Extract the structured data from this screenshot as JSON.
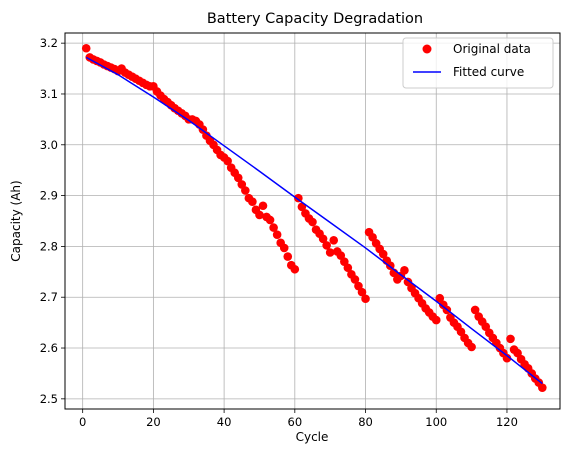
{
  "chart_data": {
    "type": "scatter",
    "title": "Battery Capacity Degradation",
    "xlabel": "Cycle",
    "ylabel": "Capacity (Ah)",
    "xlim": [
      -5,
      135
    ],
    "ylim": [
      2.48,
      3.22
    ],
    "grid": true,
    "legend_position": "upper right",
    "x_ticks": [
      0,
      20,
      40,
      60,
      80,
      100,
      120
    ],
    "y_ticks": [
      2.5,
      2.6,
      2.7,
      2.8,
      2.9,
      3.0,
      3.1,
      3.2
    ],
    "y_tick_labels": [
      "2.5",
      "2.6",
      "2.7",
      "2.8",
      "2.9",
      "3.0",
      "3.1",
      "3.2"
    ],
    "series": [
      {
        "name": "Original data",
        "kind": "points",
        "color": "#ff0000",
        "x": [
          1,
          2,
          3,
          4,
          5,
          6,
          7,
          8,
          9,
          10,
          11,
          12,
          13,
          14,
          15,
          16,
          17,
          18,
          19,
          20,
          21,
          22,
          23,
          24,
          25,
          26,
          27,
          28,
          29,
          30,
          31,
          32,
          33,
          34,
          35,
          36,
          37,
          38,
          39,
          40,
          41,
          42,
          43,
          44,
          45,
          46,
          47,
          48,
          49,
          50,
          51,
          52,
          53,
          54,
          55,
          56,
          57,
          58,
          59,
          60,
          61,
          62,
          63,
          64,
          65,
          66,
          67,
          68,
          69,
          70,
          71,
          72,
          73,
          74,
          75,
          76,
          77,
          78,
          79,
          80,
          81,
          82,
          83,
          84,
          85,
          86,
          87,
          88,
          89,
          90,
          91,
          92,
          93,
          94,
          95,
          96,
          97,
          98,
          99,
          100,
          101,
          102,
          103,
          104,
          105,
          106,
          107,
          108,
          109,
          110,
          111,
          112,
          113,
          114,
          115,
          116,
          117,
          118,
          119,
          120,
          121,
          122,
          123,
          124,
          125,
          126,
          127,
          128,
          129,
          130
        ],
        "y": [
          3.19,
          3.172,
          3.168,
          3.165,
          3.162,
          3.158,
          3.155,
          3.152,
          3.149,
          3.145,
          3.15,
          3.142,
          3.138,
          3.134,
          3.13,
          3.126,
          3.122,
          3.118,
          3.115,
          3.115,
          3.105,
          3.097,
          3.09,
          3.084,
          3.078,
          3.072,
          3.067,
          3.062,
          3.057,
          3.05,
          3.05,
          3.047,
          3.04,
          3.03,
          3.018,
          3.008,
          3.0,
          2.99,
          2.98,
          2.975,
          2.968,
          2.955,
          2.945,
          2.935,
          2.922,
          2.91,
          2.895,
          2.888,
          2.872,
          2.862,
          2.88,
          2.858,
          2.852,
          2.837,
          2.823,
          2.807,
          2.797,
          2.78,
          2.763,
          2.755,
          2.895,
          2.878,
          2.865,
          2.855,
          2.848,
          2.833,
          2.825,
          2.815,
          2.802,
          2.788,
          2.812,
          2.79,
          2.782,
          2.77,
          2.758,
          2.745,
          2.735,
          2.722,
          2.71,
          2.697,
          2.828,
          2.818,
          2.806,
          2.795,
          2.785,
          2.772,
          2.762,
          2.748,
          2.735,
          2.742,
          2.753,
          2.73,
          2.718,
          2.708,
          2.698,
          2.688,
          2.678,
          2.67,
          2.662,
          2.655,
          2.698,
          2.685,
          2.675,
          2.66,
          2.65,
          2.642,
          2.632,
          2.62,
          2.61,
          2.602,
          2.675,
          2.662,
          2.652,
          2.642,
          2.63,
          2.62,
          2.61,
          2.6,
          2.59,
          2.58,
          2.618,
          2.597,
          2.59,
          2.578,
          2.568,
          2.56,
          2.55,
          2.54,
          2.532,
          2.522
        ]
      },
      {
        "name": "Fitted curve",
        "kind": "line",
        "color": "#0000ff",
        "x": [
          1,
          10,
          20,
          30,
          40,
          50,
          60,
          70,
          80,
          90,
          100,
          110,
          120,
          130
        ],
        "y": [
          3.172,
          3.138,
          3.094,
          3.048,
          2.998,
          2.948,
          2.897,
          2.847,
          2.797,
          2.744,
          2.692,
          2.638,
          2.585,
          2.53
        ]
      }
    ]
  }
}
